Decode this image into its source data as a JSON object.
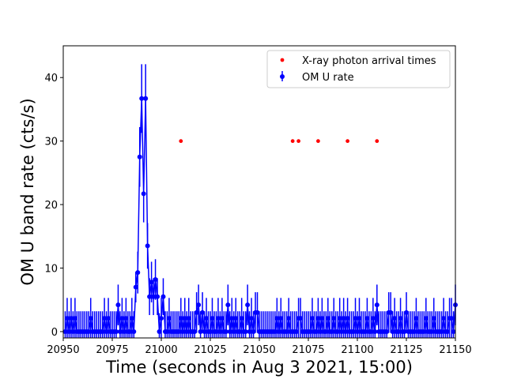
{
  "chart_data": {
    "type": "scatter",
    "xlabel": "Time (seconds in Aug 3 2021, 15:00)",
    "ylabel": "OM U band rate (cts/s)",
    "xlim": [
      20950,
      21150
    ],
    "ylim": [
      -1.0,
      45.0
    ],
    "xticks": [
      20950,
      20975,
      21000,
      21025,
      21050,
      21075,
      21100,
      21125,
      21150
    ],
    "yticks": [
      0,
      10,
      20,
      30,
      40
    ],
    "legend_position": "top-right",
    "colors": {
      "om": "#0000ff",
      "xray": "#ff0000"
    },
    "legend": [
      {
        "label": "X-ray photon arrival times",
        "marker": "dot",
        "color": "#ff0000"
      },
      {
        "label": "OM U rate",
        "marker": "errorbar",
        "color": "#0000ff"
      }
    ],
    "series": [
      {
        "name": "X-ray photon arrival times",
        "x": [
          21010,
          21067,
          21070,
          21080,
          21095,
          21110
        ],
        "y": [
          30,
          30,
          30,
          30,
          30,
          30
        ]
      },
      {
        "name": "OM U rate",
        "typical_error": 3.2,
        "points": [
          [
            20951,
            0,
            3.2
          ],
          [
            20952,
            2.1,
            3.2
          ],
          [
            20953,
            0,
            3.2
          ],
          [
            20954,
            2.1,
            3.2
          ],
          [
            20955,
            0,
            3.2
          ],
          [
            20956,
            2.1,
            3.2
          ],
          [
            20957,
            0,
            3.2
          ],
          [
            20958,
            0,
            3.2
          ],
          [
            20959,
            0,
            3.2
          ],
          [
            20960,
            0,
            3.2
          ],
          [
            20961,
            0,
            3.2
          ],
          [
            20962,
            0,
            3.2
          ],
          [
            20963,
            0,
            3.2
          ],
          [
            20964,
            2.1,
            3.2
          ],
          [
            20965,
            0,
            3.2
          ],
          [
            20966,
            0,
            3.2
          ],
          [
            20967,
            0,
            3.2
          ],
          [
            20968,
            0,
            3.2
          ],
          [
            20969,
            0,
            3.2
          ],
          [
            20970,
            0,
            3.2
          ],
          [
            20971,
            2.1,
            3.2
          ],
          [
            20972,
            0,
            3.2
          ],
          [
            20973,
            2.1,
            3.2
          ],
          [
            20974,
            0,
            3.2
          ],
          [
            20975,
            0,
            3.2
          ],
          [
            20976,
            0,
            3.2
          ],
          [
            20977,
            0,
            3.2
          ],
          [
            20978,
            4.2,
            3.2
          ],
          [
            20979,
            0,
            3.2
          ],
          [
            20980,
            2.1,
            3.2
          ],
          [
            20981,
            0,
            3.2
          ],
          [
            20982,
            2.1,
            3.2
          ],
          [
            20983,
            0,
            3.2
          ],
          [
            20984,
            0,
            3.2
          ],
          [
            20985,
            2.1,
            3.2
          ],
          [
            20986,
            0,
            3.2
          ],
          [
            20987,
            7.0,
            2.4
          ],
          [
            20988,
            9.3,
            3.3
          ],
          [
            20989,
            27.5,
            4.7
          ],
          [
            20990,
            36.7,
            5.4
          ],
          [
            20991,
            21.7,
            4.5
          ],
          [
            20992,
            36.7,
            5.4
          ],
          [
            20993,
            13.5,
            3.6
          ],
          [
            20994,
            5.5,
            2.9
          ],
          [
            20995,
            7.8,
            3.2
          ],
          [
            20996,
            5.5,
            2.9
          ],
          [
            20997,
            8.2,
            3.2
          ],
          [
            20998,
            5.5,
            2.9
          ],
          [
            20999,
            0,
            2.9
          ],
          [
            21000,
            2.1,
            3.2
          ],
          [
            21001,
            5.5,
            2.9
          ],
          [
            21002,
            0,
            3.2
          ],
          [
            21003,
            0,
            3.2
          ],
          [
            21004,
            2.1,
            3.2
          ],
          [
            21005,
            0,
            3.2
          ],
          [
            21006,
            0,
            3.2
          ],
          [
            21007,
            0,
            3.2
          ],
          [
            21008,
            0,
            3.2
          ],
          [
            21009,
            0,
            3.2
          ],
          [
            21010,
            2.1,
            3.2
          ],
          [
            21011,
            0,
            3.2
          ],
          [
            21012,
            2.1,
            3.2
          ],
          [
            21013,
            0,
            3.2
          ],
          [
            21014,
            2.1,
            3.2
          ],
          [
            21015,
            0,
            3.2
          ],
          [
            21016,
            0,
            3.2
          ],
          [
            21017,
            0,
            3.2
          ],
          [
            21018,
            3.0,
            3.2
          ],
          [
            21019,
            4.2,
            3.2
          ],
          [
            21020,
            0,
            3.2
          ],
          [
            21021,
            3.0,
            3.2
          ],
          [
            21022,
            0,
            3.2
          ],
          [
            21023,
            2.1,
            3.2
          ],
          [
            21024,
            0,
            3.2
          ],
          [
            21025,
            0,
            3.2
          ],
          [
            21026,
            2.1,
            3.2
          ],
          [
            21027,
            0,
            3.2
          ],
          [
            21028,
            0,
            3.2
          ],
          [
            21029,
            2.1,
            3.2
          ],
          [
            21030,
            0,
            3.2
          ],
          [
            21031,
            2.1,
            3.2
          ],
          [
            21032,
            0,
            3.2
          ],
          [
            21033,
            0,
            3.2
          ],
          [
            21034,
            4.2,
            3.2
          ],
          [
            21035,
            0,
            3.2
          ],
          [
            21036,
            2.1,
            3.2
          ],
          [
            21037,
            0,
            3.2
          ],
          [
            21038,
            2.1,
            3.2
          ],
          [
            21039,
            0,
            3.2
          ],
          [
            21040,
            0,
            3.2
          ],
          [
            21041,
            2.1,
            3.2
          ],
          [
            21042,
            0,
            3.2
          ],
          [
            21043,
            0,
            3.2
          ],
          [
            21044,
            4.2,
            3.2
          ],
          [
            21045,
            0,
            3.2
          ],
          [
            21046,
            2.1,
            3.2
          ],
          [
            21047,
            0,
            3.2
          ],
          [
            21048,
            3.0,
            3.2
          ],
          [
            21049,
            3.0,
            3.2
          ],
          [
            21050,
            0,
            3.2
          ],
          [
            21051,
            0,
            3.2
          ],
          [
            21052,
            0,
            3.2
          ],
          [
            21053,
            0,
            3.2
          ],
          [
            21054,
            0,
            3.2
          ],
          [
            21055,
            0,
            3.2
          ],
          [
            21056,
            0,
            3.2
          ],
          [
            21057,
            0,
            3.2
          ],
          [
            21058,
            0,
            3.2
          ],
          [
            21059,
            2.1,
            3.2
          ],
          [
            21060,
            0,
            3.2
          ],
          [
            21061,
            2.1,
            3.2
          ],
          [
            21062,
            0,
            3.2
          ],
          [
            21063,
            0,
            3.2
          ],
          [
            21064,
            0,
            3.2
          ],
          [
            21065,
            2.1,
            3.2
          ],
          [
            21066,
            0,
            3.2
          ],
          [
            21067,
            0,
            3.2
          ],
          [
            21068,
            0,
            3.2
          ],
          [
            21069,
            0,
            3.2
          ],
          [
            21070,
            2.1,
            3.2
          ],
          [
            21071,
            2.1,
            3.2
          ],
          [
            21072,
            0,
            3.2
          ],
          [
            21073,
            0,
            3.2
          ],
          [
            21074,
            0,
            3.2
          ],
          [
            21075,
            0,
            3.2
          ],
          [
            21076,
            0,
            3.2
          ],
          [
            21077,
            2.1,
            3.2
          ],
          [
            21078,
            0,
            3.2
          ],
          [
            21079,
            0,
            3.2
          ],
          [
            21080,
            2.1,
            3.2
          ],
          [
            21081,
            0,
            3.2
          ],
          [
            21082,
            2.1,
            3.2
          ],
          [
            21083,
            0,
            3.2
          ],
          [
            21084,
            0,
            3.2
          ],
          [
            21085,
            2.1,
            3.2
          ],
          [
            21086,
            0,
            3.2
          ],
          [
            21087,
            0,
            3.2
          ],
          [
            21088,
            2.1,
            3.2
          ],
          [
            21089,
            0,
            3.2
          ],
          [
            21090,
            0,
            3.2
          ],
          [
            21091,
            2.1,
            3.2
          ],
          [
            21092,
            0,
            3.2
          ],
          [
            21093,
            2.1,
            3.2
          ],
          [
            21094,
            0,
            3.2
          ],
          [
            21095,
            2.1,
            3.2
          ],
          [
            21096,
            0,
            3.2
          ],
          [
            21097,
            0,
            3.2
          ],
          [
            21098,
            0,
            3.2
          ],
          [
            21099,
            2.1,
            3.2
          ],
          [
            21100,
            0,
            3.2
          ],
          [
            21101,
            2.1,
            3.2
          ],
          [
            21102,
            0,
            3.2
          ],
          [
            21103,
            0,
            3.2
          ],
          [
            21104,
            0,
            3.2
          ],
          [
            21105,
            2.1,
            3.2
          ],
          [
            21106,
            0,
            3.2
          ],
          [
            21107,
            0,
            3.2
          ],
          [
            21108,
            2.1,
            3.2
          ],
          [
            21109,
            0,
            3.2
          ],
          [
            21110,
            4.2,
            3.2
          ],
          [
            21111,
            0,
            3.2
          ],
          [
            21112,
            0,
            3.2
          ],
          [
            21113,
            0,
            3.2
          ],
          [
            21114,
            0,
            3.2
          ],
          [
            21115,
            0,
            3.2
          ],
          [
            21116,
            3.0,
            3.2
          ],
          [
            21117,
            3.0,
            3.2
          ],
          [
            21118,
            0,
            3.2
          ],
          [
            21119,
            2.1,
            3.2
          ],
          [
            21120,
            0,
            3.2
          ],
          [
            21121,
            0,
            3.2
          ],
          [
            21122,
            2.1,
            3.2
          ],
          [
            21123,
            0,
            3.2
          ],
          [
            21124,
            0,
            3.2
          ],
          [
            21125,
            3.0,
            3.2
          ],
          [
            21126,
            0,
            3.2
          ],
          [
            21127,
            0,
            3.2
          ],
          [
            21128,
            0,
            3.2
          ],
          [
            21129,
            0,
            3.2
          ],
          [
            21130,
            2.1,
            3.2
          ],
          [
            21131,
            0,
            3.2
          ],
          [
            21132,
            0,
            3.2
          ],
          [
            21133,
            0,
            3.2
          ],
          [
            21134,
            0,
            3.2
          ],
          [
            21135,
            2.1,
            3.2
          ],
          [
            21136,
            0,
            3.2
          ],
          [
            21137,
            0,
            3.2
          ],
          [
            21138,
            0,
            3.2
          ],
          [
            21139,
            2.1,
            3.2
          ],
          [
            21140,
            0,
            3.2
          ],
          [
            21141,
            0,
            3.2
          ],
          [
            21142,
            0,
            3.2
          ],
          [
            21143,
            0,
            3.2
          ],
          [
            21144,
            2.1,
            3.2
          ],
          [
            21145,
            0,
            3.2
          ],
          [
            21146,
            0,
            3.2
          ],
          [
            21147,
            2.1,
            3.2
          ],
          [
            21148,
            2.1,
            3.2
          ],
          [
            21149,
            0,
            3.2
          ],
          [
            21150,
            4.2,
            3.2
          ]
        ]
      }
    ]
  }
}
